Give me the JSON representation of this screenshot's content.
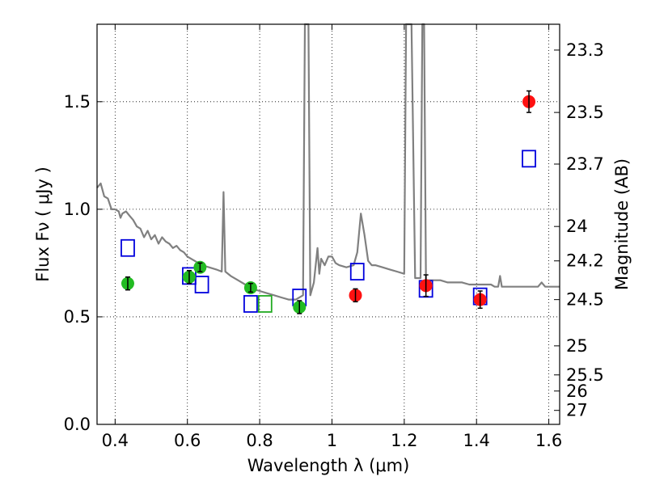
{
  "chart_data": {
    "type": "scatter",
    "xlabel": "Wavelength  λ (μm)",
    "ylabel": "Flux  Fν  ( μJy )",
    "y2label": "Magnitude (AB)",
    "xlim": [
      0.35,
      1.63
    ],
    "ylim": [
      0.0,
      1.86
    ],
    "x_ticks": [
      0.4,
      0.6,
      0.8,
      1.0,
      1.2,
      1.4,
      1.6
    ],
    "x_tick_labels": [
      "0.4",
      "0.6",
      "0.8",
      "1",
      "1.2",
      "1.4",
      "1.6"
    ],
    "y_ticks": [
      0.0,
      0.5,
      1.0,
      1.5
    ],
    "y_tick_labels": [
      "0.0",
      "0.5",
      "1.0",
      "1.5"
    ],
    "y2_ticks": [
      {
        "label": "23.3",
        "flux": 1.74
      },
      {
        "label": "23.5",
        "flux": 1.45
      },
      {
        "label": "23.7",
        "flux": 1.21
      },
      {
        "label": "24",
        "flux": 0.92
      },
      {
        "label": "24.2",
        "flux": 0.76
      },
      {
        "label": "24.5",
        "flux": 0.58
      },
      {
        "label": "25",
        "flux": 0.365
      },
      {
        "label": "25.5",
        "flux": 0.23
      },
      {
        "label": "26",
        "flux": 0.155
      },
      {
        "label": "27",
        "flux": 0.065
      }
    ],
    "grid": true,
    "colors": {
      "green": "#22bb22",
      "red": "#ff1111",
      "blue": "#0000dd",
      "model": "#808080",
      "green_square": "#22aa22"
    },
    "series": [
      {
        "kind": "points-with-errors",
        "color_key": "green",
        "points": [
          {
            "x": 0.435,
            "y": 0.655,
            "err": 0.03
          },
          {
            "x": 0.605,
            "y": 0.685,
            "err": 0.03
          },
          {
            "x": 0.635,
            "y": 0.73,
            "err": 0.02
          },
          {
            "x": 0.775,
            "y": 0.635,
            "err": 0.02
          },
          {
            "x": 0.91,
            "y": 0.545,
            "err": 0.03
          }
        ]
      },
      {
        "kind": "points-with-errors",
        "color_key": "red",
        "points": [
          {
            "x": 1.065,
            "y": 0.6,
            "err": 0.03
          },
          {
            "x": 1.26,
            "y": 0.645,
            "err": 0.05
          },
          {
            "x": 1.41,
            "y": 0.58,
            "err": 0.04
          },
          {
            "x": 1.545,
            "y": 1.5,
            "err": 0.05
          }
        ]
      },
      {
        "kind": "model-squares",
        "color_key": "blue",
        "points": [
          {
            "x": 0.435,
            "y": 0.82
          },
          {
            "x": 0.605,
            "y": 0.69
          },
          {
            "x": 0.64,
            "y": 0.65
          },
          {
            "x": 0.775,
            "y": 0.56
          },
          {
            "x": 0.91,
            "y": 0.59
          },
          {
            "x": 1.07,
            "y": 0.71
          },
          {
            "x": 1.26,
            "y": 0.63
          },
          {
            "x": 1.41,
            "y": 0.595
          },
          {
            "x": 1.545,
            "y": 1.235
          }
        ]
      },
      {
        "kind": "model-squares",
        "color_key": "green_square",
        "points": [
          {
            "x": 0.815,
            "y": 0.56
          }
        ]
      },
      {
        "kind": "sed-line",
        "color_key": "model",
        "points": [
          [
            0.35,
            1.1
          ],
          [
            0.36,
            1.12
          ],
          [
            0.37,
            1.06
          ],
          [
            0.38,
            1.05
          ],
          [
            0.39,
            1.0
          ],
          [
            0.4,
            1.0
          ],
          [
            0.41,
            0.99
          ],
          [
            0.415,
            0.96
          ],
          [
            0.42,
            0.98
          ],
          [
            0.43,
            0.99
          ],
          [
            0.44,
            0.97
          ],
          [
            0.45,
            0.95
          ],
          [
            0.46,
            0.92
          ],
          [
            0.47,
            0.91
          ],
          [
            0.48,
            0.87
          ],
          [
            0.49,
            0.9
          ],
          [
            0.5,
            0.86
          ],
          [
            0.51,
            0.88
          ],
          [
            0.52,
            0.84
          ],
          [
            0.53,
            0.87
          ],
          [
            0.54,
            0.85
          ],
          [
            0.55,
            0.84
          ],
          [
            0.56,
            0.82
          ],
          [
            0.57,
            0.83
          ],
          [
            0.58,
            0.81
          ],
          [
            0.59,
            0.8
          ],
          [
            0.6,
            0.78
          ],
          [
            0.62,
            0.76
          ],
          [
            0.64,
            0.74
          ],
          [
            0.66,
            0.73
          ],
          [
            0.68,
            0.72
          ],
          [
            0.695,
            0.71
          ],
          [
            0.7,
            1.08
          ],
          [
            0.705,
            0.71
          ],
          [
            0.72,
            0.69
          ],
          [
            0.74,
            0.67
          ],
          [
            0.76,
            0.65
          ],
          [
            0.78,
            0.63
          ],
          [
            0.8,
            0.62
          ],
          [
            0.82,
            0.61
          ],
          [
            0.84,
            0.6
          ],
          [
            0.86,
            0.59
          ],
          [
            0.88,
            0.58
          ],
          [
            0.9,
            0.58
          ],
          [
            0.92,
            0.6
          ],
          [
            0.925,
            1.86
          ],
          [
            0.935,
            1.86
          ],
          [
            0.94,
            0.6
          ],
          [
            0.95,
            0.66
          ],
          [
            0.96,
            0.82
          ],
          [
            0.965,
            0.7
          ],
          [
            0.97,
            0.77
          ],
          [
            0.98,
            0.74
          ],
          [
            0.99,
            0.78
          ],
          [
            1.0,
            0.78
          ],
          [
            1.01,
            0.75
          ],
          [
            1.02,
            0.74
          ],
          [
            1.04,
            0.73
          ],
          [
            1.06,
            0.74
          ],
          [
            1.07,
            0.8
          ],
          [
            1.08,
            0.98
          ],
          [
            1.09,
            0.88
          ],
          [
            1.1,
            0.76
          ],
          [
            1.11,
            0.74
          ],
          [
            1.12,
            0.74
          ],
          [
            1.14,
            0.73
          ],
          [
            1.16,
            0.72
          ],
          [
            1.18,
            0.71
          ],
          [
            1.2,
            0.7
          ],
          [
            1.205,
            1.86
          ],
          [
            1.22,
            1.86
          ],
          [
            1.23,
            0.68
          ],
          [
            1.245,
            0.68
          ],
          [
            1.25,
            1.86
          ],
          [
            1.255,
            1.86
          ],
          [
            1.26,
            0.67
          ],
          [
            1.28,
            0.67
          ],
          [
            1.3,
            0.67
          ],
          [
            1.32,
            0.66
          ],
          [
            1.34,
            0.66
          ],
          [
            1.36,
            0.66
          ],
          [
            1.38,
            0.65
          ],
          [
            1.4,
            0.65
          ],
          [
            1.42,
            0.65
          ],
          [
            1.44,
            0.65
          ],
          [
            1.45,
            0.64
          ],
          [
            1.46,
            0.64
          ],
          [
            1.465,
            0.69
          ],
          [
            1.47,
            0.64
          ],
          [
            1.5,
            0.64
          ],
          [
            1.53,
            0.64
          ],
          [
            1.55,
            0.64
          ],
          [
            1.57,
            0.64
          ],
          [
            1.58,
            0.66
          ],
          [
            1.59,
            0.64
          ],
          [
            1.6,
            0.64
          ],
          [
            1.63,
            0.64
          ]
        ]
      }
    ]
  }
}
